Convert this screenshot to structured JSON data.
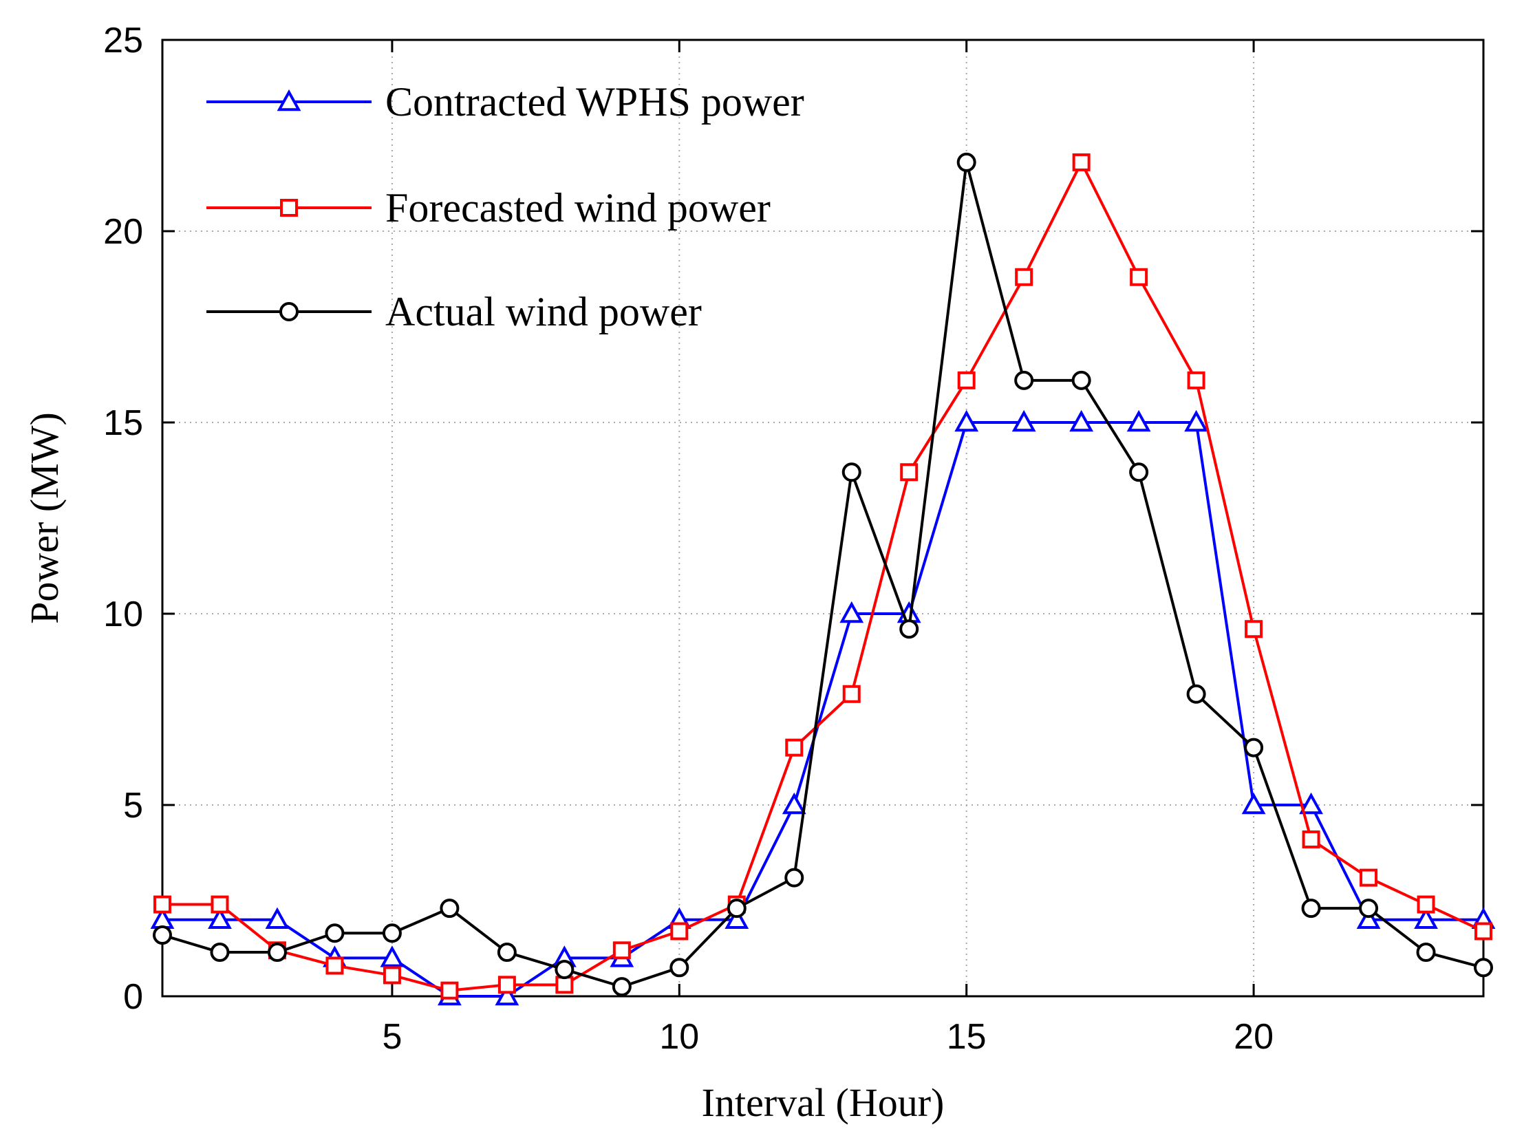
{
  "chart_data": {
    "type": "line",
    "xlabel": "Interval (Hour)",
    "ylabel": "Power (MW)",
    "xlim": [
      1,
      24
    ],
    "ylim": [
      0,
      25
    ],
    "x_ticks": [
      5,
      10,
      15,
      20
    ],
    "y_ticks": [
      0,
      5,
      10,
      15,
      20,
      25
    ],
    "grid": "on (dotted)",
    "legend_position": "top-left",
    "x": [
      1,
      2,
      3,
      4,
      5,
      6,
      7,
      8,
      9,
      10,
      11,
      12,
      13,
      14,
      15,
      16,
      17,
      18,
      19,
      20,
      21,
      22,
      23,
      24
    ],
    "series": [
      {
        "name": "Contracted WPHS power",
        "color": "#0000ff",
        "marker": "triangle",
        "values": [
          2,
          2,
          2,
          1,
          1,
          0,
          0,
          1,
          1,
          2,
          2,
          5,
          10,
          10,
          15,
          15,
          15,
          15,
          15,
          5,
          5,
          2,
          2,
          2
        ]
      },
      {
        "name": "Forecasted wind power",
        "color": "#ff0000",
        "marker": "square",
        "values": [
          2.4,
          2.4,
          1.2,
          0.8,
          0.55,
          0.15,
          0.3,
          0.3,
          1.2,
          1.7,
          2.4,
          6.5,
          7.9,
          13.7,
          16.1,
          18.8,
          21.8,
          18.8,
          16.1,
          9.6,
          4.1,
          3.1,
          2.4,
          1.7
        ]
      },
      {
        "name": "Actual wind power",
        "color": "#000000",
        "marker": "circle",
        "values": [
          1.6,
          1.15,
          1.15,
          1.65,
          1.65,
          2.3,
          1.15,
          0.7,
          0.25,
          0.75,
          2.3,
          3.1,
          13.7,
          9.6,
          21.8,
          16.1,
          16.1,
          13.7,
          7.9,
          6.5,
          2.3,
          2.3,
          1.15,
          0.75
        ]
      }
    ]
  }
}
